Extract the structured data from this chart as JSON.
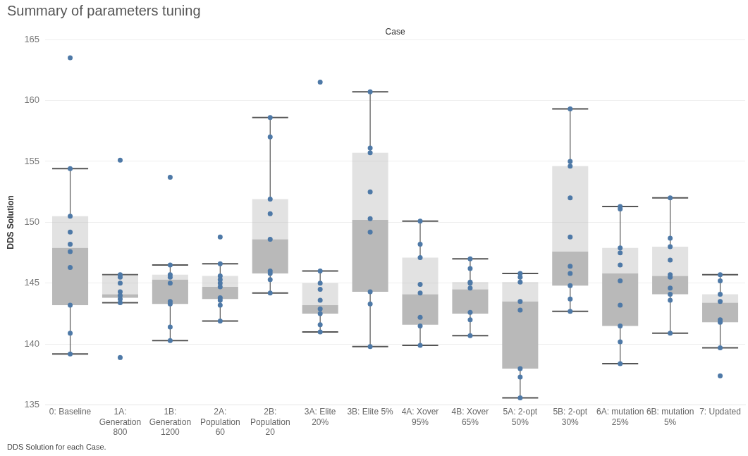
{
  "chart_data": {
    "type": "box",
    "title": "Summary of parameters tuning",
    "xlabel": "Case",
    "ylabel": "DDS Solution",
    "annotations": [
      "DDS Solution for each Case."
    ],
    "categories": [
      "0: Baseline",
      "1A: Generation 800",
      "1B: Generation 1200",
      "2A: Population 60",
      "2B: Population 20",
      "3A: Elite 20%",
      "3B: Elite 5%",
      "4A: Xover 95%",
      "4B: Xover 65%",
      "5A: 2-opt 50%",
      "5B: 2-opt 30%",
      "6A: mutation 25%",
      "6B: mutation 5%",
      "7: Updated"
    ],
    "ylim": [
      135,
      165
    ],
    "yticks": [
      135,
      140,
      145,
      150,
      155,
      160,
      165
    ],
    "grid": "y",
    "legend": false,
    "series": [
      {
        "type": "box",
        "color": "#b9b9b9",
        "boxes": [
          {
            "low": 139.2,
            "q1": 143.2,
            "median": 147.9,
            "q3": 150.5,
            "high": 154.4,
            "outliers": [
              163.5
            ]
          },
          {
            "low": 143.4,
            "q1": 143.8,
            "median": 144.1,
            "q3": 145.7,
            "high": 145.7,
            "outliers": [
              155.1,
              138.9
            ]
          },
          {
            "low": 140.3,
            "q1": 143.3,
            "median": 145.3,
            "q3": 145.7,
            "high": 146.5,
            "outliers": [
              153.7
            ]
          },
          {
            "low": 141.9,
            "q1": 143.7,
            "median": 144.7,
            "q3": 145.6,
            "high": 146.6,
            "outliers": [
              148.8
            ]
          },
          {
            "low": 144.2,
            "q1": 145.8,
            "median": 148.6,
            "q3": 151.9,
            "high": 158.6
          },
          {
            "low": 141.0,
            "q1": 142.5,
            "median": 143.2,
            "q3": 145.0,
            "high": 146.0,
            "outliers": [
              161.5
            ]
          },
          {
            "low": 139.8,
            "q1": 144.3,
            "median": 150.2,
            "q3": 155.7,
            "high": 160.7
          },
          {
            "low": 139.9,
            "q1": 141.6,
            "median": 144.1,
            "q3": 147.1,
            "high": 150.1
          },
          {
            "low": 140.7,
            "q1": 142.5,
            "median": 144.5,
            "q3": 145.1,
            "high": 147.0
          },
          {
            "low": 135.6,
            "q1": 138.0,
            "median": 143.5,
            "q3": 145.1,
            "high": 145.8
          },
          {
            "low": 142.7,
            "q1": 144.8,
            "median": 147.6,
            "q3": 154.6,
            "high": 159.3
          },
          {
            "low": 138.4,
            "q1": 141.5,
            "median": 145.8,
            "q3": 147.9,
            "high": 151.3
          },
          {
            "low": 140.9,
            "q1": 144.1,
            "median": 145.6,
            "q3": 148.0,
            "high": 152.0
          },
          {
            "low": 139.7,
            "q1": 141.8,
            "median": 143.4,
            "q3": 144.1,
            "high": 145.7,
            "outliers": [
              137.4
            ]
          }
        ]
      },
      {
        "type": "scatter",
        "color": "#4e79a7",
        "marker": "circle",
        "x": [
          "0: Baseline",
          "0: Baseline",
          "0: Baseline",
          "0: Baseline",
          "0: Baseline",
          "0: Baseline",
          "0: Baseline",
          "0: Baseline",
          "0: Baseline",
          "1A: Generation 800",
          "1A: Generation 800",
          "1A: Generation 800",
          "1A: Generation 800",
          "1A: Generation 800",
          "1A: Generation 800",
          "1A: Generation 800",
          "1B: Generation 1200",
          "1B: Generation 1200",
          "1B: Generation 1200",
          "1B: Generation 1200",
          "1B: Generation 1200",
          "1B: Generation 1200",
          "1B: Generation 1200",
          "1B: Generation 1200",
          "2A: Population 60",
          "2A: Population 60",
          "2A: Population 60",
          "2A: Population 60",
          "2A: Population 60",
          "2A: Population 60",
          "2A: Population 60",
          "2A: Population 60",
          "2A: Population 60",
          "2B: Population 20",
          "2B: Population 20",
          "2B: Population 20",
          "2B: Population 20",
          "2B: Population 20",
          "2B: Population 20",
          "2B: Population 20",
          "2B: Population 20",
          "2B: Population 20",
          "3A: Elite 20%",
          "3A: Elite 20%",
          "3A: Elite 20%",
          "3A: Elite 20%",
          "3A: Elite 20%",
          "3A: Elite 20%",
          "3A: Elite 20%",
          "3A: Elite 20%",
          "3B: Elite 5%",
          "3B: Elite 5%",
          "3B: Elite 5%",
          "3B: Elite 5%",
          "3B: Elite 5%",
          "3B: Elite 5%",
          "3B: Elite 5%",
          "3B: Elite 5%",
          "3B: Elite 5%",
          "4A: Xover 95%",
          "4A: Xover 95%",
          "4A: Xover 95%",
          "4A: Xover 95%",
          "4A: Xover 95%",
          "4A: Xover 95%",
          "4A: Xover 95%",
          "4A: Xover 95%",
          "4B: Xover 65%",
          "4B: Xover 65%",
          "4B: Xover 65%",
          "4B: Xover 65%",
          "4B: Xover 65%",
          "4B: Xover 65%",
          "4B: Xover 65%",
          "4B: Xover 65%",
          "5A: 2-opt 50%",
          "5A: 2-opt 50%",
          "5A: 2-opt 50%",
          "5A: 2-opt 50%",
          "5A: 2-opt 50%",
          "5A: 2-opt 50%",
          "5A: 2-opt 50%",
          "5A: 2-opt 50%",
          "5B: 2-opt 30%",
          "5B: 2-opt 30%",
          "5B: 2-opt 30%",
          "5B: 2-opt 30%",
          "5B: 2-opt 30%",
          "5B: 2-opt 30%",
          "5B: 2-opt 30%",
          "5B: 2-opt 30%",
          "5B: 2-opt 30%",
          "5B: 2-opt 30%",
          "6A: mutation 25%",
          "6A: mutation 25%",
          "6A: mutation 25%",
          "6A: mutation 25%",
          "6A: mutation 25%",
          "6A: mutation 25%",
          "6A: mutation 25%",
          "6A: mutation 25%",
          "6A: mutation 25%",
          "6A: mutation 25%",
          "6B: mutation 5%",
          "6B: mutation 5%",
          "6B: mutation 5%",
          "6B: mutation 5%",
          "6B: mutation 5%",
          "6B: mutation 5%",
          "6B: mutation 5%",
          "6B: mutation 5%",
          "6B: mutation 5%",
          "6B: mutation 5%",
          "7: Updated",
          "7: Updated",
          "7: Updated",
          "7: Updated",
          "7: Updated",
          "7: Updated",
          "7: Updated"
        ],
        "values": [
          154.4,
          150.5,
          149.2,
          148.2,
          147.6,
          146.3,
          143.2,
          140.9,
          139.2,
          145.7,
          145.5,
          145.0,
          144.3,
          144.0,
          143.7,
          143.4,
          146.5,
          145.7,
          145.5,
          145.0,
          143.5,
          143.3,
          141.4,
          140.3,
          146.6,
          145.6,
          145.3,
          145.0,
          144.7,
          143.8,
          143.6,
          143.2,
          141.9,
          158.6,
          157.0,
          151.9,
          150.7,
          148.6,
          146.0,
          145.8,
          145.3,
          144.2,
          146.0,
          145.0,
          144.5,
          143.6,
          142.9,
          142.5,
          141.6,
          141.0,
          160.7,
          156.1,
          155.7,
          152.5,
          150.3,
          149.2,
          144.3,
          143.3,
          139.8,
          150.1,
          148.2,
          147.1,
          144.9,
          144.2,
          142.2,
          141.5,
          139.9,
          147.0,
          146.2,
          145.1,
          145.0,
          144.6,
          142.6,
          142.0,
          140.7,
          145.8,
          145.5,
          145.1,
          143.5,
          142.8,
          138.0,
          137.3,
          135.6,
          159.3,
          155.0,
          154.6,
          152.0,
          148.8,
          146.4,
          145.8,
          144.8,
          143.7,
          142.7,
          151.3,
          151.1,
          147.9,
          147.5,
          146.5,
          145.2,
          143.2,
          141.5,
          140.2,
          138.4,
          152.0,
          148.7,
          148.0,
          146.9,
          145.7,
          145.5,
          144.6,
          144.1,
          143.6,
          140.9,
          145.7,
          145.2,
          144.1,
          143.5,
          142.0,
          141.8,
          139.7
        ]
      }
    ]
  }
}
